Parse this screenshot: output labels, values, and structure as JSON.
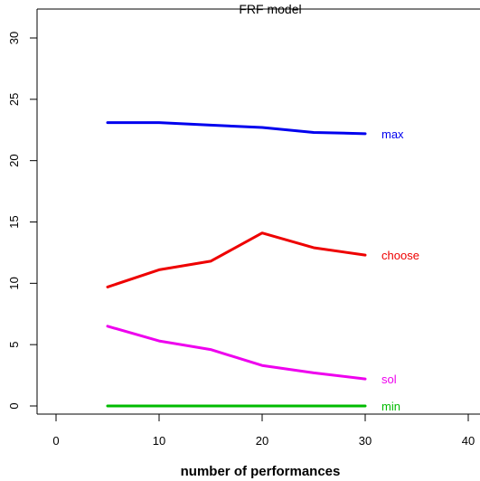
{
  "chart_data": {
    "type": "line",
    "title": "FRF model",
    "xlabel": "number of performances",
    "ylabel": "",
    "xlim": [
      0,
      40
    ],
    "ylim": [
      0,
      30
    ],
    "xticks": [
      "0",
      "10",
      "20",
      "30",
      "40"
    ],
    "yticks": [
      "0",
      "5",
      "10",
      "15",
      "20",
      "25",
      "30"
    ],
    "grid": false,
    "legend": "none",
    "series": [
      {
        "name": "max",
        "color": "#0000ee",
        "x": [
          5,
          10,
          15,
          20,
          25,
          30
        ],
        "y": [
          23.1,
          23.1,
          22.9,
          22.7,
          22.3,
          22.2
        ]
      },
      {
        "name": "choose",
        "color": "#ee0000",
        "x": [
          5,
          10,
          15,
          20,
          25,
          30
        ],
        "y": [
          9.7,
          11.1,
          11.8,
          14.1,
          12.9,
          12.3
        ]
      },
      {
        "name": "sol",
        "color": "#ee00ee",
        "x": [
          5,
          10,
          15,
          20,
          25,
          30
        ],
        "y": [
          6.5,
          5.3,
          4.6,
          3.3,
          2.7,
          2.2
        ]
      },
      {
        "name": "min",
        "color": "#00bb00",
        "x": [
          5,
          10,
          15,
          20,
          25,
          30
        ],
        "y": [
          0.0,
          0.0,
          0.0,
          0.0,
          0.0,
          0.0
        ]
      }
    ]
  }
}
